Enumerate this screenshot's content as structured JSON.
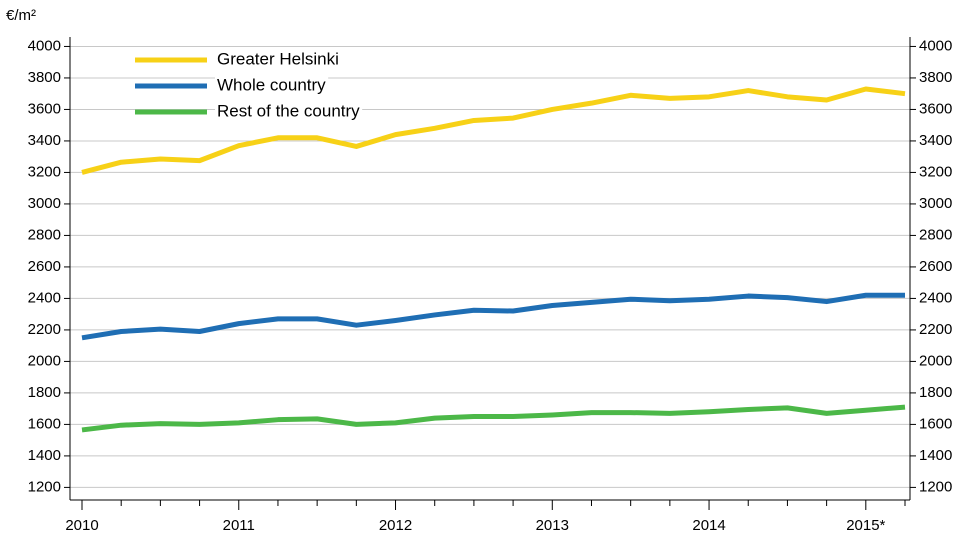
{
  "chart_data": {
    "type": "line",
    "y_label": "€/m²",
    "categories": [
      "2010",
      null,
      null,
      null,
      "2011",
      null,
      null,
      null,
      "2012",
      null,
      null,
      null,
      "2013",
      null,
      null,
      null,
      "2014",
      null,
      null,
      null,
      "2015*",
      null
    ],
    "series": [
      {
        "name": "Greater Helsinki",
        "color": "#f7d117",
        "values": [
          3200,
          3265,
          3285,
          3275,
          3370,
          3420,
          3420,
          3365,
          3440,
          3480,
          3530,
          3545,
          3600,
          3640,
          3690,
          3670,
          3680,
          3720,
          3680,
          3660,
          3730,
          3700
        ]
      },
      {
        "name": "Whole country",
        "color": "#1f6eb4",
        "values": [
          2150,
          2190,
          2205,
          2190,
          2240,
          2270,
          2270,
          2230,
          2260,
          2295,
          2325,
          2320,
          2355,
          2375,
          2395,
          2385,
          2395,
          2415,
          2405,
          2380,
          2420,
          2420
        ]
      },
      {
        "name": "Rest of the country",
        "color": "#4cb848",
        "values": [
          1565,
          1595,
          1605,
          1600,
          1610,
          1630,
          1635,
          1600,
          1610,
          1640,
          1650,
          1650,
          1660,
          1675,
          1675,
          1670,
          1680,
          1695,
          1705,
          1670,
          1690,
          1710
        ]
      }
    ],
    "ylim": [
      1120,
      4060
    ],
    "yticks": [
      1200,
      1400,
      1600,
      1800,
      2000,
      2200,
      2400,
      2600,
      2800,
      3000,
      3200,
      3400,
      3600,
      3800,
      4000
    ],
    "grid": true,
    "legend": "top-left"
  }
}
